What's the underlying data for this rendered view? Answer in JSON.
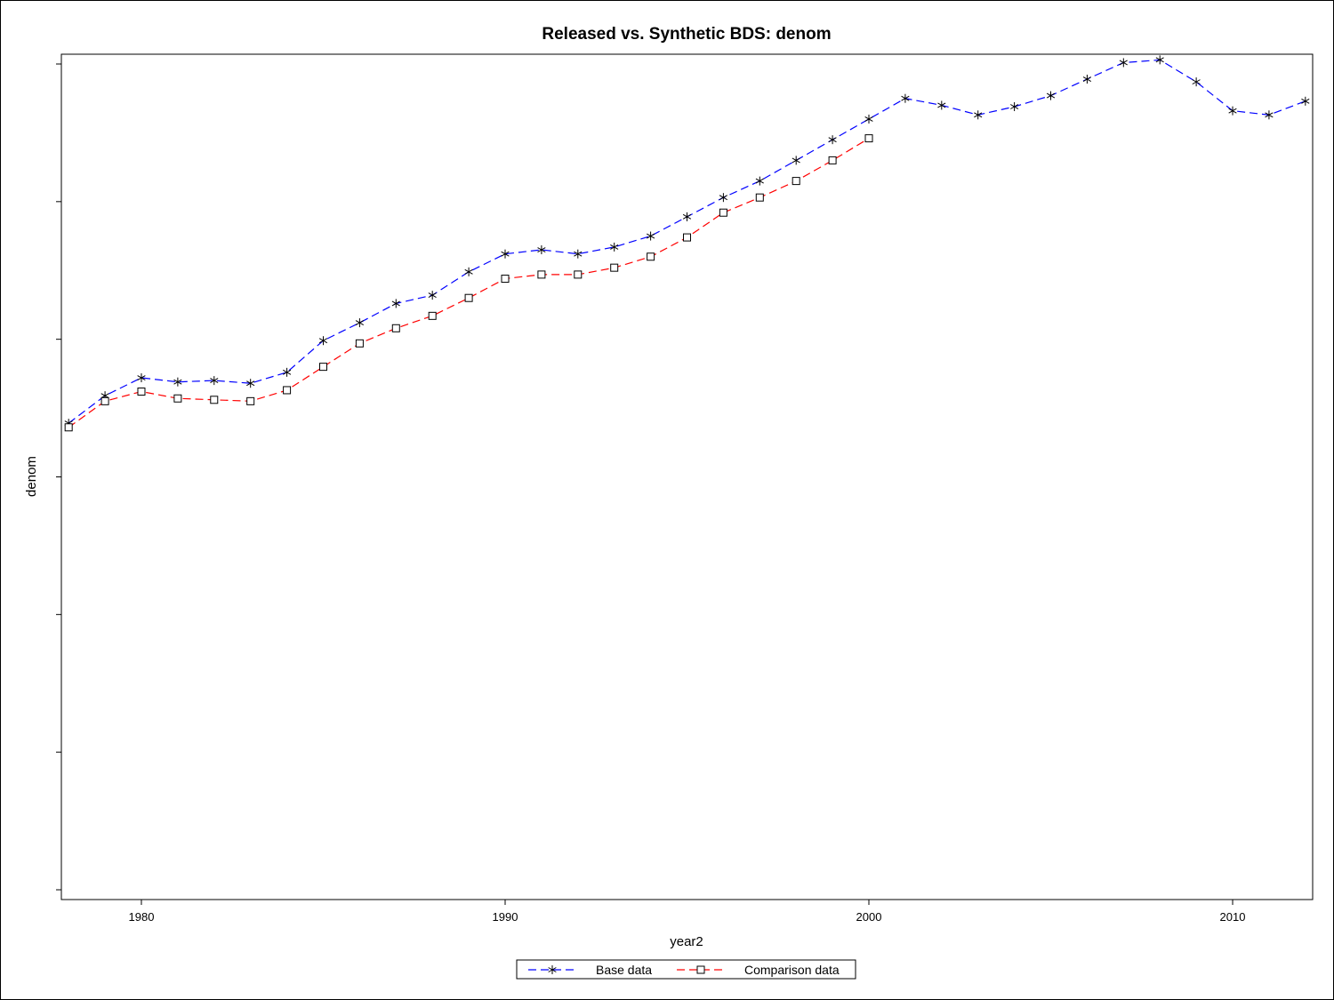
{
  "chart_data": {
    "type": "line",
    "title": "Released vs. Synthetic BDS: denom",
    "xlabel": "year2",
    "ylabel": "denom",
    "xlim": [
      1977.8,
      2012.2
    ],
    "ylim": [
      0,
      6
    ],
    "x_ticks": [
      1980,
      1990,
      2000,
      2010
    ],
    "x_tick_labels": [
      "1980",
      "1990",
      "2000",
      "2010"
    ],
    "y_ticks": [
      0,
      1,
      2,
      3,
      4,
      5,
      6
    ],
    "y_tick_labels_visible": false,
    "grid": false,
    "legend_position": "bottom",
    "series": [
      {
        "name": "Base data",
        "color": "#0000ff",
        "marker": "star",
        "line_style": "dashed",
        "x": [
          1978,
          1979,
          1980,
          1981,
          1982,
          1983,
          1984,
          1985,
          1986,
          1987,
          1988,
          1989,
          1990,
          1991,
          1992,
          1993,
          1994,
          1995,
          1996,
          1997,
          1998,
          1999,
          2000,
          2001,
          2002,
          2003,
          2004,
          2005,
          2006,
          2007,
          2008,
          2009,
          2010,
          2011,
          2012
        ],
        "values": [
          3.39,
          3.59,
          3.72,
          3.69,
          3.7,
          3.68,
          3.76,
          3.99,
          4.12,
          4.26,
          4.32,
          4.49,
          4.62,
          4.65,
          4.62,
          4.67,
          4.75,
          4.89,
          5.03,
          5.15,
          5.3,
          5.45,
          5.6,
          5.75,
          5.7,
          5.63,
          5.69,
          5.77,
          5.89,
          6.01,
          6.03,
          5.87,
          5.66,
          5.63,
          5.73
        ]
      },
      {
        "name": "Comparison data",
        "color": "#ff0000",
        "marker": "square",
        "line_style": "dashed",
        "x": [
          1978,
          1979,
          1980,
          1981,
          1982,
          1983,
          1984,
          1985,
          1986,
          1987,
          1988,
          1989,
          1990,
          1991,
          1992,
          1993,
          1994,
          1995,
          1996,
          1997,
          1998,
          1999,
          2000
        ],
        "values": [
          3.36,
          3.55,
          3.62,
          3.57,
          3.56,
          3.55,
          3.63,
          3.8,
          3.97,
          4.08,
          4.17,
          4.3,
          4.44,
          4.47,
          4.47,
          4.52,
          4.6,
          4.74,
          4.92,
          5.03,
          5.15,
          5.3,
          5.46
        ]
      }
    ]
  },
  "legend": {
    "items": [
      "Base data",
      "Comparison data"
    ]
  }
}
